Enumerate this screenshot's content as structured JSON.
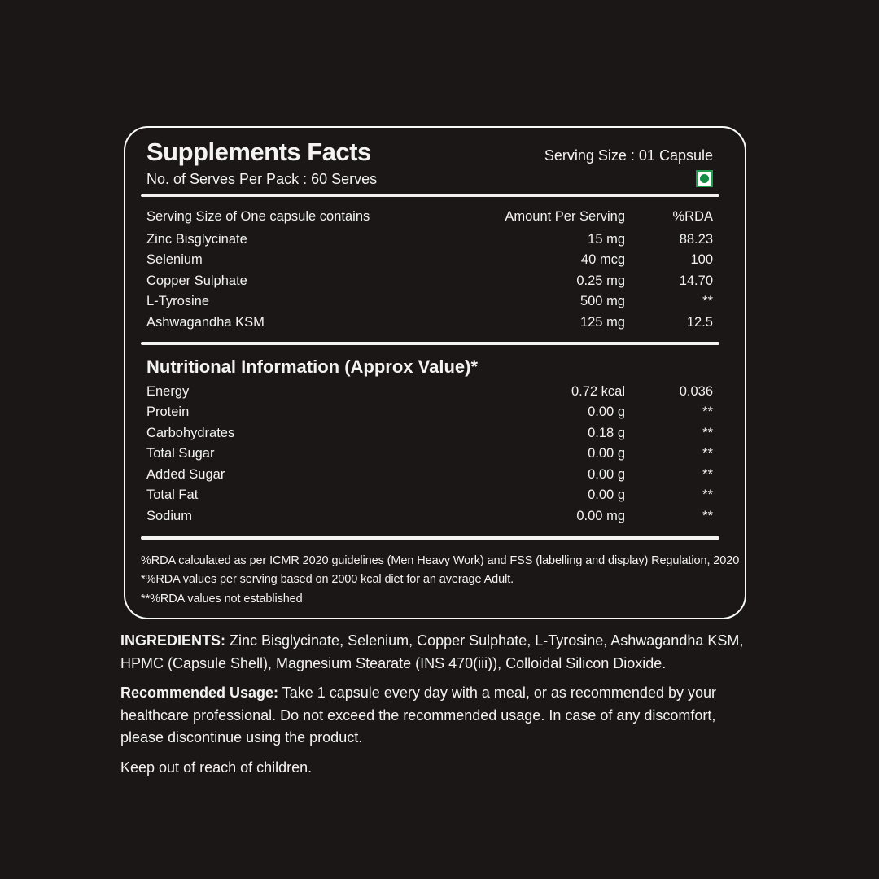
{
  "panel": {
    "title": "Supplements Facts",
    "serving_size": "Serving Size : 01 Capsule",
    "serves_per_pack": "No. of Serves Per Pack : 60 Serves",
    "veg_mark": "vegetarian-mark",
    "supplement_table": {
      "headers": [
        "Serving Size of One capsule contains",
        "Amount Per Serving",
        "%RDA"
      ],
      "rows": [
        {
          "name": "Zinc Bisglycinate",
          "amount": "15 mg",
          "rda": "88.23"
        },
        {
          "name": "Selenium",
          "amount": "40 mcg",
          "rda": "100"
        },
        {
          "name": "Copper Sulphate",
          "amount": "0.25 mg",
          "rda": "14.70"
        },
        {
          "name": "L-Tyrosine",
          "amount": "500 mg",
          "rda": "**"
        },
        {
          "name": "Ashwagandha KSM",
          "amount": "125 mg",
          "rda": "12.5"
        }
      ]
    },
    "nutrition": {
      "heading": "Nutritional Information (Approx Value)*",
      "rows": [
        {
          "name": "Energy",
          "amount": "0.72 kcal",
          "rda": "0.036"
        },
        {
          "name": "Protein",
          "amount": "0.00 g",
          "rda": "**"
        },
        {
          "name": "Carbohydrates",
          "amount": "0.18 g",
          "rda": "**"
        },
        {
          "name": "Total Sugar",
          "amount": "0.00 g",
          "rda": "**"
        },
        {
          "name": "Added Sugar",
          "amount": "0.00 g",
          "rda": "**"
        },
        {
          "name": "Total Fat",
          "amount": "0.00 g",
          "rda": "**"
        },
        {
          "name": "Sodium",
          "amount": "0.00 mg",
          "rda": "**"
        }
      ]
    },
    "footnotes": [
      "%RDA calculated as per ICMR 2020 guidelines (Men Heavy Work) and FSS (labelling and display) Regulation, 2020",
      "*%RDA values per serving based on 2000 kcal diet for an average Adult.",
      "**%RDA values not established"
    ]
  },
  "bottom": {
    "ingredients_label": "INGREDIENTS:",
    "ingredients_text": " Zinc Bisglycinate, Selenium, Copper Sulphate, L-Tyrosine, Ashwagandha KSM, HPMC (Capsule Shell), Magnesium Stearate (INS 470(iii)), Colloidal Silicon Dioxide.",
    "usage_label": "Recommended Usage:",
    "usage_text": " Take 1 capsule every day with a meal, or as recommended by your healthcare professional. Do not exceed the recommended usage. In case of any discomfort, please discontinue using the product.",
    "caution": "Keep out of reach of children."
  },
  "colors": {
    "background": "#1a1716",
    "text": "#f4f3f1",
    "veg_green": "#1f9b4e",
    "border": "#fafafa"
  }
}
